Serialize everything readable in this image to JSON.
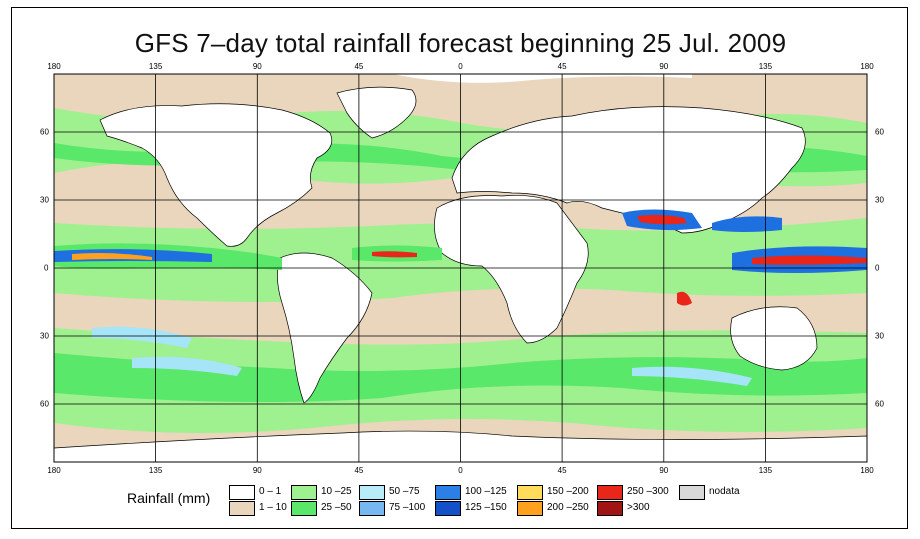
{
  "title": "GFS 7–day total rainfall forecast beginning 25 Jul. 2009",
  "map": {
    "top_ticks": [
      "180",
      "135",
      "90",
      "45",
      "0",
      "45",
      "90",
      "135",
      "180"
    ],
    "bottom_ticks": [
      "180",
      "135",
      "90",
      "45",
      "0",
      "45",
      "90",
      "135",
      "180"
    ],
    "left_ticks": [
      "60",
      "30",
      "0",
      "30",
      "60"
    ],
    "right_ticks": [
      "60",
      "30",
      "0",
      "30",
      "60"
    ],
    "lon_values": [
      -180,
      -135,
      -90,
      -45,
      0,
      45,
      90,
      135,
      180
    ],
    "lat_values": [
      60,
      30,
      0,
      -30,
      -60
    ],
    "colors": {
      "ocean_dry": "#e9d6bc",
      "land_dry": "#ffffff",
      "light_green": "#9ff08f",
      "green": "#5ae86a",
      "light_blue": "#a6e4f7",
      "blue": "#1e6fe0",
      "yellow": "#ffdc5a",
      "orange": "#ffa01e",
      "red": "#e8261a",
      "darkred": "#a01414"
    }
  },
  "legend": {
    "title": "Rainfall (mm)",
    "items": [
      {
        "label": "0 – 1",
        "color": "#ffffff"
      },
      {
        "label": "1 – 10",
        "color": "#e9d6bc"
      },
      {
        "label": "10 –25",
        "color": "#9ff08f"
      },
      {
        "label": "25 –50",
        "color": "#5ae86a"
      },
      {
        "label": "50 –75",
        "color": "#b8ecf8"
      },
      {
        "label": "75 –100",
        "color": "#78b8f0"
      },
      {
        "label": "100 –125",
        "color": "#2b7fe6"
      },
      {
        "label": "125 –150",
        "color": "#1450c8"
      },
      {
        "label": "150 –200",
        "color": "#ffdc5a"
      },
      {
        "label": "200 –250",
        "color": "#ffa01e"
      },
      {
        "label": "250 –300",
        "color": "#e8261a"
      },
      {
        "label": ">300",
        "color": "#a01414"
      },
      {
        "label": "nodata",
        "color": "#d8d8d8"
      }
    ]
  }
}
